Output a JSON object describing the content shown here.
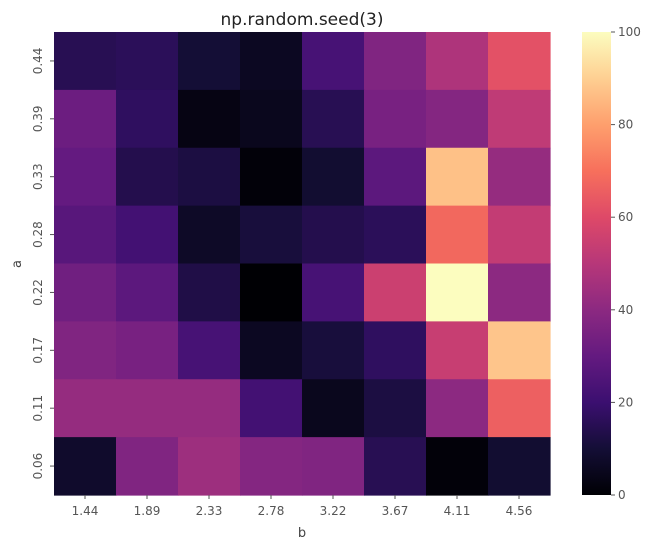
{
  "chart_data": {
    "type": "heatmap",
    "title": "np.random.seed(3)",
    "xlabel": "b",
    "ylabel": "a",
    "x_categories": [
      "1.44",
      "1.89",
      "2.33",
      "2.78",
      "3.22",
      "3.67",
      "4.11",
      "4.56"
    ],
    "y_categories_top_to_bottom": [
      "0.44",
      "0.39",
      "0.33",
      "0.28",
      "0.22",
      "0.17",
      "0.11",
      "0.06"
    ],
    "values": [
      [
        15,
        16,
        10,
        6,
        23,
        37,
        48,
        62
      ],
      [
        32,
        17,
        3,
        5,
        15,
        35,
        38,
        52
      ],
      [
        30,
        14,
        12,
        1,
        9,
        28,
        87,
        42
      ],
      [
        27,
        22,
        7,
        11,
        14,
        16,
        68,
        53
      ],
      [
        33,
        28,
        13,
        0,
        23,
        55,
        100,
        40
      ],
      [
        37,
        35,
        23,
        6,
        11,
        17,
        54,
        88
      ],
      [
        42,
        42,
        42,
        22,
        5,
        12,
        40,
        66
      ],
      [
        8,
        37,
        44,
        38,
        37,
        15,
        1,
        9
      ]
    ],
    "colorbar": {
      "min": 0,
      "max": 100,
      "ticks": [
        "0",
        "20",
        "40",
        "60",
        "80",
        "100"
      ]
    },
    "colormap": "magma",
    "grid": false
  }
}
